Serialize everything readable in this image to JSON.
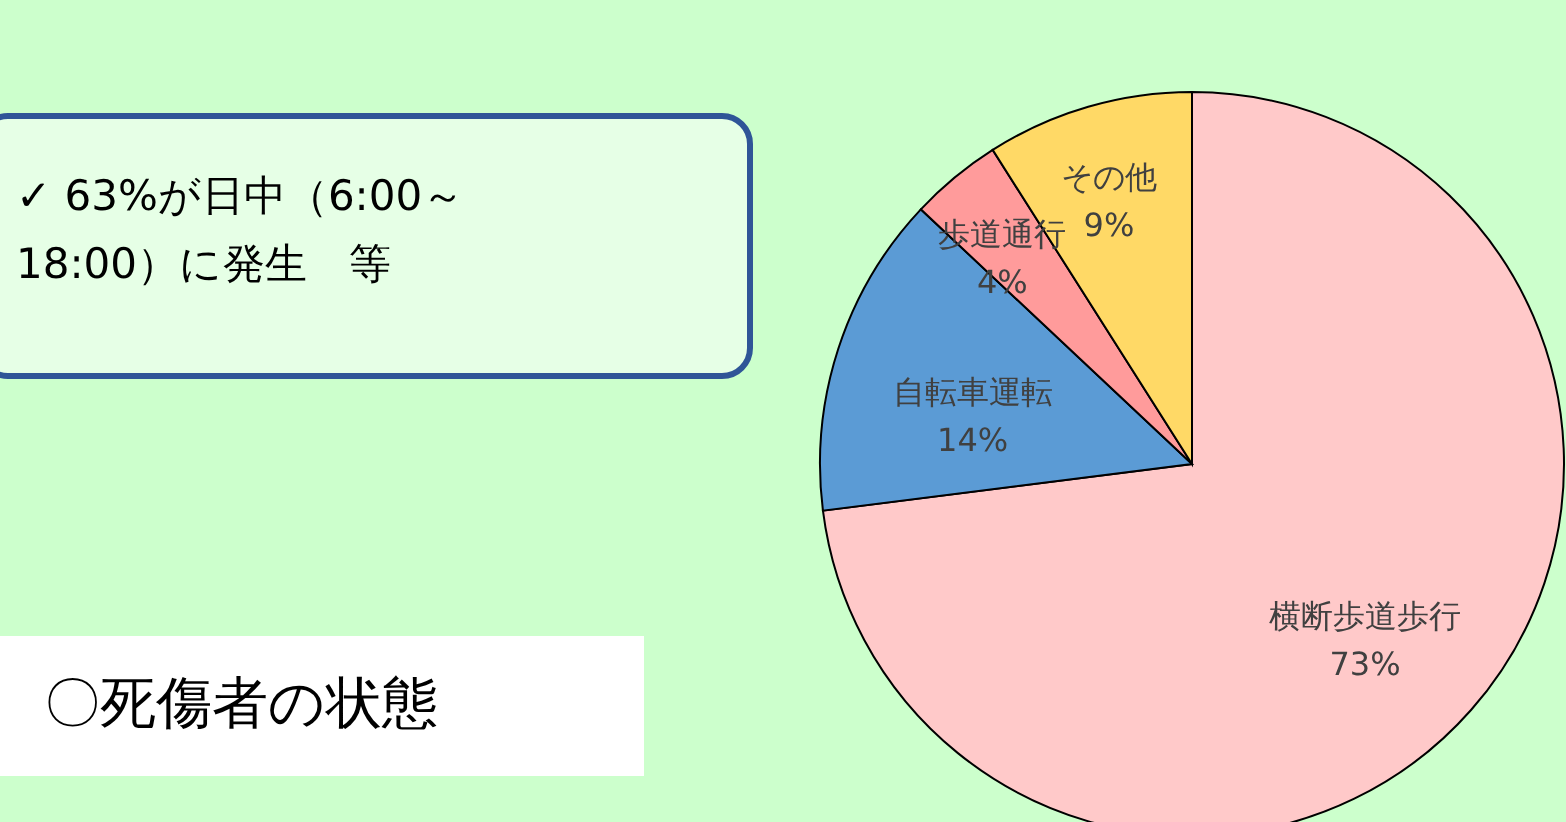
{
  "chart_data": {
    "type": "pie",
    "categories": [
      "横断歩道歩行",
      "自転車運転",
      "歩道通行",
      "その他"
    ],
    "values": [
      73,
      14,
      4,
      9
    ],
    "value_labels": [
      "73%",
      "14%",
      "4%",
      "9%"
    ],
    "colors": [
      "#ffc9c9",
      "#5b9bd5",
      "#ff9b9b",
      "#ffd966"
    ],
    "annotations": [
      "✓ 63%が日中（6:00～18:00）に発生　等",
      "〇死傷者の状態"
    ]
  }
}
